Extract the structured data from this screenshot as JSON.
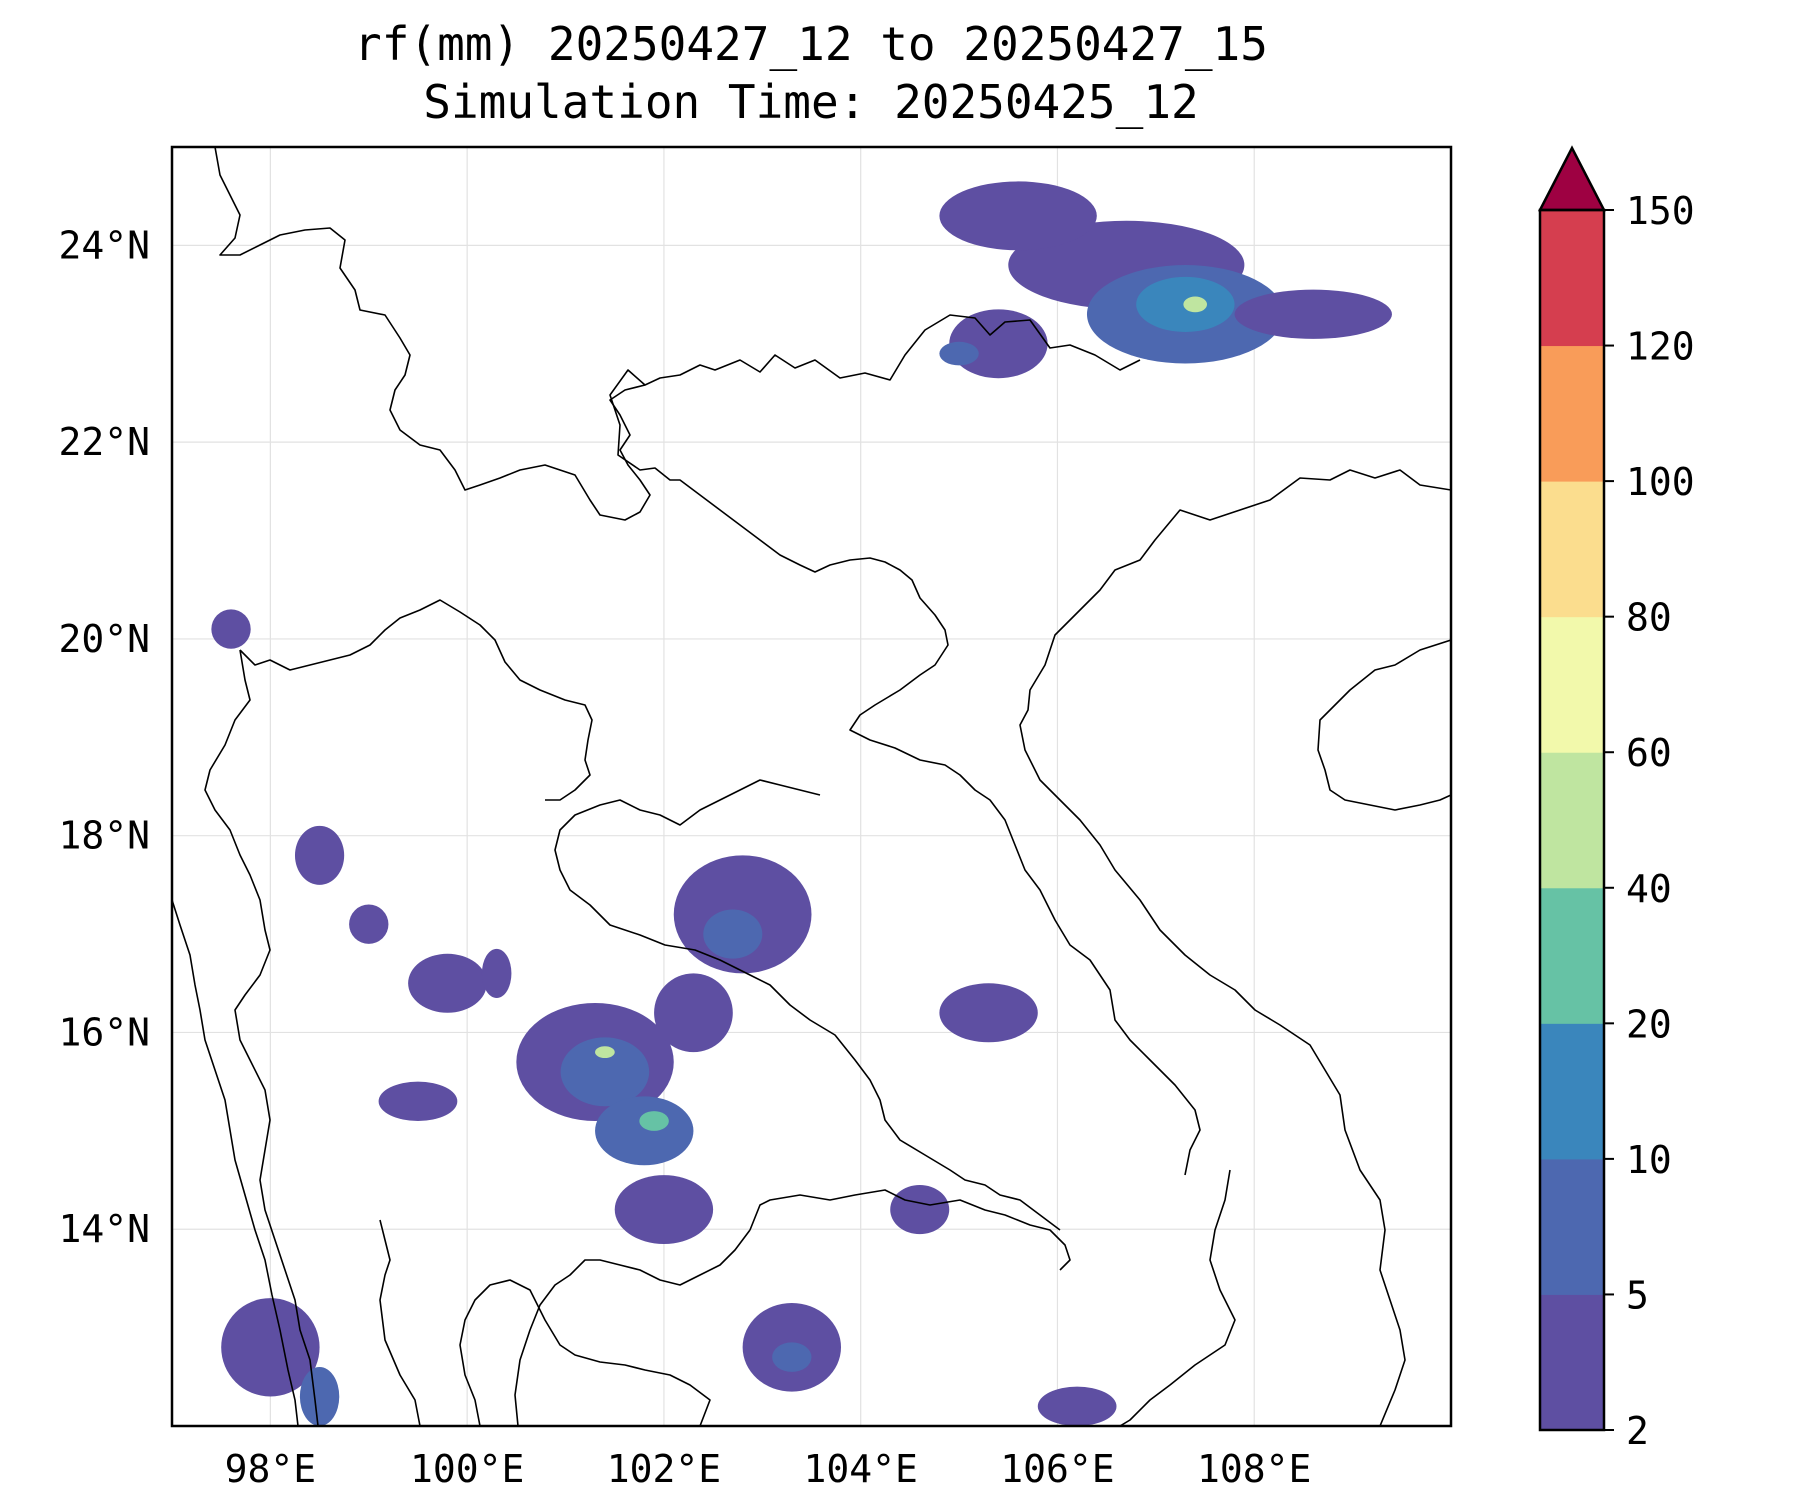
{
  "title": {
    "line1": "rf(mm) 20250427_12 to 20250427_15",
    "line2": "Simulation Time: 20250425_12"
  },
  "map": {
    "lon_range": [
      97,
      110
    ],
    "lat_range": [
      12,
      25
    ],
    "lon_ticks": [
      {
        "value": 98,
        "label": "98°E"
      },
      {
        "value": 100,
        "label": "100°E"
      },
      {
        "value": 102,
        "label": "102°E"
      },
      {
        "value": 104,
        "label": "104°E"
      },
      {
        "value": 106,
        "label": "106°E"
      },
      {
        "value": 108,
        "label": "108°E"
      }
    ],
    "lat_ticks": [
      {
        "value": 24,
        "label": "24°N"
      },
      {
        "value": 22,
        "label": "22°N"
      },
      {
        "value": 20,
        "label": "20°N"
      },
      {
        "value": 18,
        "label": "18°N"
      },
      {
        "value": 16,
        "label": "16°N"
      },
      {
        "value": 14,
        "label": "14°N"
      }
    ],
    "grid": true
  },
  "colorbar": {
    "levels": [
      {
        "value": 2,
        "label": "2"
      },
      {
        "value": 5,
        "label": "5"
      },
      {
        "value": 10,
        "label": "10"
      },
      {
        "value": 20,
        "label": "20"
      },
      {
        "value": 40,
        "label": "40"
      },
      {
        "value": 60,
        "label": "60"
      },
      {
        "value": 80,
        "label": "80"
      },
      {
        "value": 100,
        "label": "100"
      },
      {
        "value": 120,
        "label": "120"
      },
      {
        "value": 150,
        "label": "150"
      }
    ],
    "colors": [
      "#5e4fa2",
      "#4d68b0",
      "#3a86bc",
      "#66c2a5",
      "#bfe5a0",
      "#f2f9ab",
      "#fbdd8e",
      "#f99c59",
      "#d53e4f"
    ],
    "extend_color": "#9e0142"
  },
  "rain_areas": [
    {
      "lon": 106.7,
      "lat": 23.8,
      "rx": 1.2,
      "ry": 0.45,
      "level": 1
    },
    {
      "lon": 105.6,
      "lat": 24.3,
      "rx": 0.8,
      "ry": 0.35,
      "level": 1
    },
    {
      "lon": 107.3,
      "lat": 23.3,
      "rx": 1.0,
      "ry": 0.5,
      "level": 2
    },
    {
      "lon": 107.3,
      "lat": 23.4,
      "rx": 0.5,
      "ry": 0.28,
      "level": 3
    },
    {
      "lon": 107.4,
      "lat": 23.4,
      "rx": 0.12,
      "ry": 0.08,
      "level": 5
    },
    {
      "lon": 108.6,
      "lat": 23.3,
      "rx": 0.8,
      "ry": 0.25,
      "level": 1
    },
    {
      "lon": 105.4,
      "lat": 23.0,
      "rx": 0.5,
      "ry": 0.35,
      "level": 1
    },
    {
      "lon": 105.0,
      "lat": 22.9,
      "rx": 0.2,
      "ry": 0.12,
      "level": 2
    },
    {
      "lon": 101.3,
      "lat": 15.7,
      "rx": 0.8,
      "ry": 0.6,
      "level": 1
    },
    {
      "lon": 101.4,
      "lat": 15.6,
      "rx": 0.45,
      "ry": 0.35,
      "level": 2
    },
    {
      "lon": 101.8,
      "lat": 15.0,
      "rx": 0.5,
      "ry": 0.35,
      "level": 2
    },
    {
      "lon": 101.9,
      "lat": 15.1,
      "rx": 0.15,
      "ry": 0.1,
      "level": 4
    },
    {
      "lon": 101.4,
      "lat": 15.8,
      "rx": 0.1,
      "ry": 0.06,
      "level": 5
    },
    {
      "lon": 102.8,
      "lat": 17.2,
      "rx": 0.7,
      "ry": 0.6,
      "level": 1
    },
    {
      "lon": 102.7,
      "lat": 17.0,
      "rx": 0.3,
      "ry": 0.25,
      "level": 2
    },
    {
      "lon": 102.3,
      "lat": 16.2,
      "rx": 0.4,
      "ry": 0.4,
      "level": 1
    },
    {
      "lon": 102.0,
      "lat": 14.2,
      "rx": 0.5,
      "ry": 0.35,
      "level": 1
    },
    {
      "lon": 103.3,
      "lat": 12.8,
      "rx": 0.5,
      "ry": 0.45,
      "level": 1
    },
    {
      "lon": 103.3,
      "lat": 12.7,
      "rx": 0.2,
      "ry": 0.15,
      "level": 2
    },
    {
      "lon": 105.3,
      "lat": 16.2,
      "rx": 0.5,
      "ry": 0.3,
      "level": 1
    },
    {
      "lon": 104.6,
      "lat": 14.2,
      "rx": 0.3,
      "ry": 0.25,
      "level": 1
    },
    {
      "lon": 98.0,
      "lat": 12.8,
      "rx": 0.5,
      "ry": 0.5,
      "level": 1
    },
    {
      "lon": 98.5,
      "lat": 12.3,
      "rx": 0.2,
      "ry": 0.3,
      "level": 2
    },
    {
      "lon": 99.8,
      "lat": 16.5,
      "rx": 0.4,
      "ry": 0.3,
      "level": 1
    },
    {
      "lon": 98.5,
      "lat": 17.8,
      "rx": 0.25,
      "ry": 0.3,
      "level": 1
    },
    {
      "lon": 97.6,
      "lat": 20.1,
      "rx": 0.2,
      "ry": 0.2,
      "level": 1
    },
    {
      "lon": 99.5,
      "lat": 15.3,
      "rx": 0.4,
      "ry": 0.2,
      "level": 1
    },
    {
      "lon": 106.2,
      "lat": 12.2,
      "rx": 0.4,
      "ry": 0.2,
      "level": 1
    },
    {
      "lon": 99.0,
      "lat": 17.1,
      "rx": 0.2,
      "ry": 0.2,
      "level": 1
    },
    {
      "lon": 100.3,
      "lat": 16.6,
      "rx": 0.15,
      "ry": 0.25,
      "level": 1
    }
  ]
}
